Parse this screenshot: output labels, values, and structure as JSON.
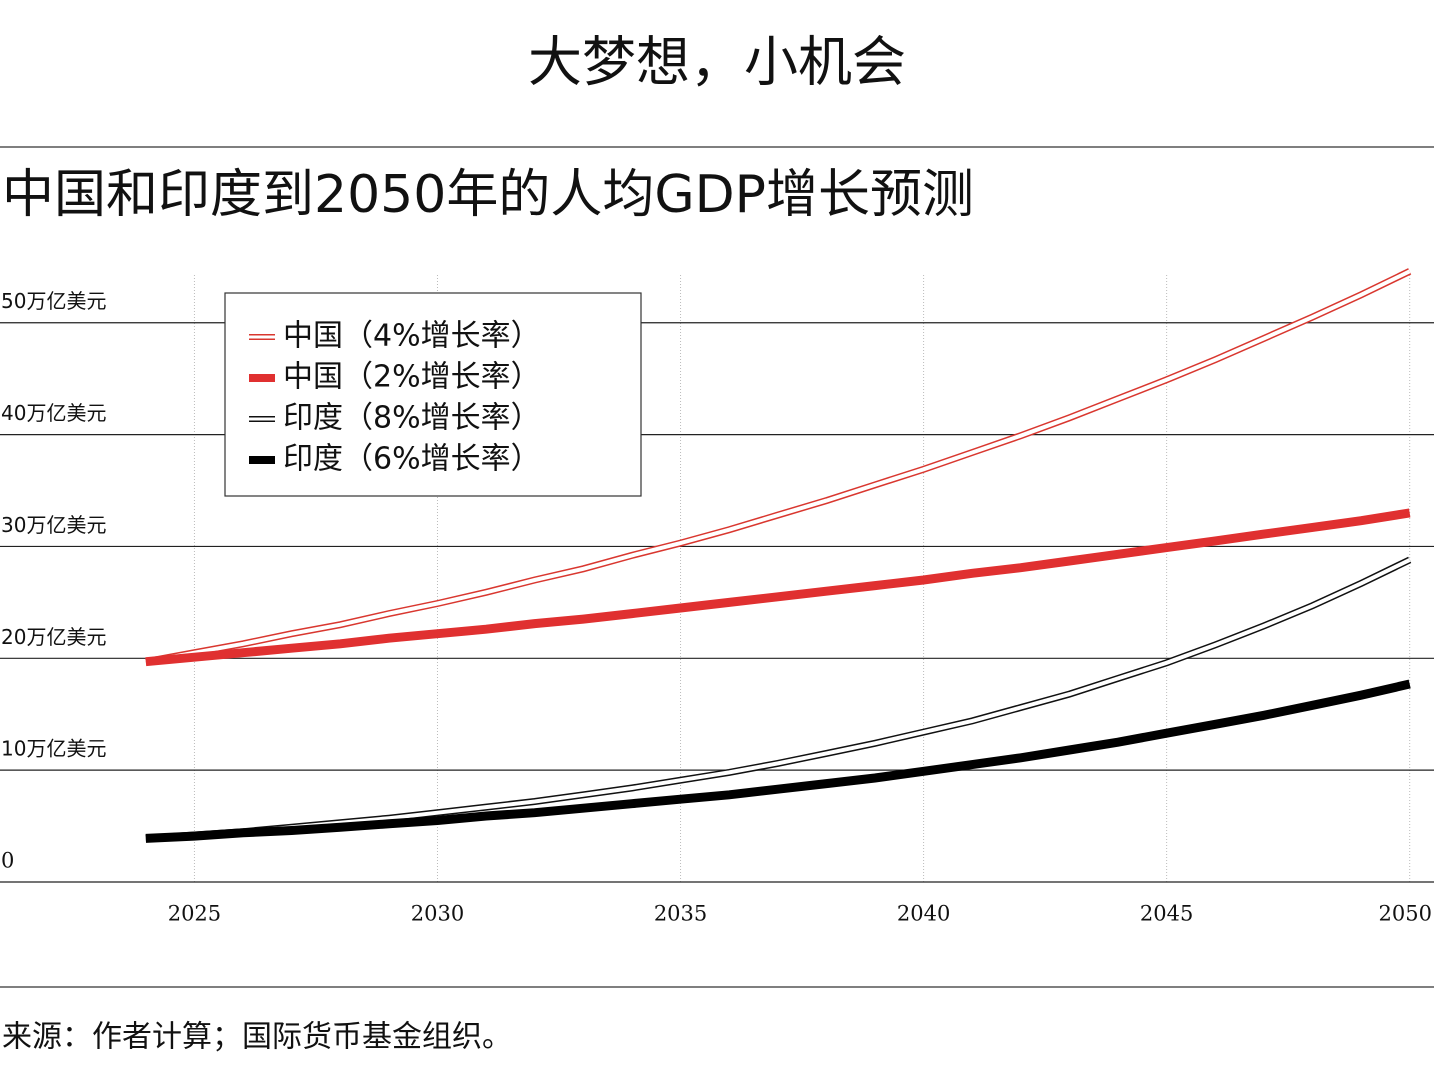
{
  "chart_data": {
    "type": "line",
    "title": "大梦想，小机会",
    "subtitle": "中国和印度到2050年的人均GDP增长预测",
    "source": "来源：作者计算；国际货币基金组织。",
    "x": [
      2024,
      2025,
      2026,
      2027,
      2028,
      2029,
      2030,
      2031,
      2032,
      2033,
      2034,
      2035,
      2036,
      2037,
      2038,
      2039,
      2040,
      2041,
      2042,
      2043,
      2044,
      2045,
      2046,
      2047,
      2048,
      2049,
      2050
    ],
    "xlim": [
      2021,
      2050.5
    ],
    "xticks": [
      2025,
      2030,
      2035,
      2040,
      2045,
      2050
    ],
    "ylim": [
      0,
      54
    ],
    "yticks": [
      0,
      {
        "value": 10,
        "label": "10万亿美元"
      },
      {
        "value": 20,
        "label": "20万亿美元"
      },
      {
        "value": 30,
        "label": "30万亿美元"
      },
      {
        "value": 40,
        "label": "40万亿美元"
      },
      {
        "value": 50,
        "label": "50万亿美元"
      }
    ],
    "grid": true,
    "legend": "upper left",
    "series": [
      {
        "name": "中国（4%增长率）",
        "color": "#d9372f",
        "style": "double",
        "values": [
          19.7,
          20.5,
          21.3,
          22.2,
          23.0,
          24.0,
          24.9,
          25.9,
          27.0,
          28.0,
          29.2,
          30.3,
          31.5,
          32.8,
          34.1,
          35.5,
          36.9,
          38.4,
          39.9,
          41.5,
          43.2,
          44.9,
          46.7,
          48.6,
          50.5,
          52.5,
          54.6
        ]
      },
      {
        "name": "中国（2%增长率）",
        "color": "#e03030",
        "style": "solid",
        "values": [
          19.7,
          20.1,
          20.5,
          20.9,
          21.3,
          21.8,
          22.2,
          22.6,
          23.1,
          23.5,
          24.0,
          24.5,
          25.0,
          25.5,
          26.0,
          26.5,
          27.0,
          27.6,
          28.1,
          28.7,
          29.3,
          29.9,
          30.5,
          31.1,
          31.7,
          32.3,
          33.0
        ]
      },
      {
        "name": "印度（8%增长率）",
        "color": "#111111",
        "style": "double",
        "values": [
          3.9,
          4.2,
          4.5,
          4.9,
          5.3,
          5.7,
          6.2,
          6.7,
          7.2,
          7.8,
          8.4,
          9.1,
          9.8,
          10.6,
          11.5,
          12.4,
          13.4,
          14.4,
          15.6,
          16.8,
          18.2,
          19.6,
          21.2,
          22.9,
          24.7,
          26.7,
          28.8
        ]
      },
      {
        "name": "印度（6%增长率）",
        "color": "#000000",
        "style": "solid",
        "values": [
          3.9,
          4.1,
          4.4,
          4.6,
          4.9,
          5.2,
          5.5,
          5.9,
          6.2,
          6.6,
          7.0,
          7.4,
          7.8,
          8.3,
          8.8,
          9.3,
          9.9,
          10.5,
          11.1,
          11.8,
          12.5,
          13.3,
          14.1,
          14.9,
          15.8,
          16.7,
          17.7
        ]
      }
    ]
  }
}
